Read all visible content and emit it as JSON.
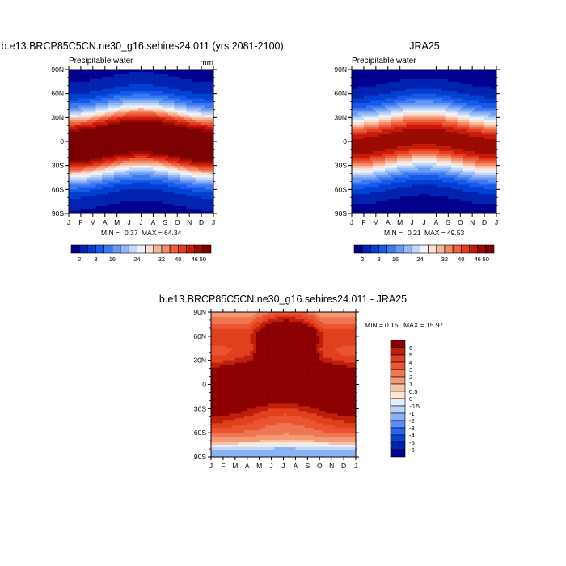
{
  "chart_data": [
    {
      "type": "heatmap",
      "title": "b.e13.BRCP85C5CN.ne30_g16.sehires24.011 (yrs 2081-2100)",
      "left_label": "Precipitable water",
      "right_label": "mm",
      "x_tick_labels": [
        "J",
        "F",
        "M",
        "A",
        "M",
        "J",
        "J",
        "A",
        "S",
        "O",
        "N",
        "D",
        "J"
      ],
      "y_tick_labels": [
        "90S",
        "60S",
        "30S",
        "0",
        "30N",
        "60N",
        "90N"
      ],
      "ylim": [
        -90,
        90
      ],
      "stats": {
        "min_label": "MIN =",
        "min": "0.37",
        "max_label": "MAX =",
        "max": "64.34"
      },
      "colorbar_ticks": [
        "2",
        "8",
        "16",
        "24",
        "32",
        "40",
        "46",
        "50"
      ]
    },
    {
      "type": "heatmap",
      "title": "JRA25",
      "left_label": "Precipitable water",
      "right_label": "",
      "x_tick_labels": [
        "J",
        "F",
        "M",
        "A",
        "M",
        "J",
        "J",
        "A",
        "S",
        "O",
        "N",
        "D",
        "J"
      ],
      "y_tick_labels": [
        "90S",
        "60S",
        "30S",
        "0",
        "30N",
        "60N",
        "90N"
      ],
      "ylim": [
        -90,
        90
      ],
      "stats": {
        "min_label": "MIN =",
        "min": "0.21",
        "max_label": "MAX =",
        "max": "49.53"
      },
      "colorbar_ticks": [
        "2",
        "8",
        "16",
        "24",
        "32",
        "40",
        "46",
        "50"
      ]
    },
    {
      "type": "heatmap",
      "title": "b.e13.BRCP85C5CN.ne30_g16.sehires24.011 - JRA25",
      "x_tick_labels": [
        "J",
        "F",
        "M",
        "A",
        "M",
        "J",
        "J",
        "A",
        "S",
        "O",
        "N",
        "D",
        "J"
      ],
      "y_tick_labels": [
        "90S",
        "60S",
        "30S",
        "0",
        "30N",
        "60N",
        "90N"
      ],
      "ylim": [
        -90,
        90
      ],
      "stats": {
        "min_label": "MIN =",
        "min": "0.15",
        "max_label": "MAX =",
        "max": "15.97"
      },
      "colorbar_ticks": [
        "6",
        "5",
        "4",
        "3",
        "2",
        "1",
        "0.5",
        "0",
        "-0.5",
        "-1",
        "-2",
        "-3",
        "-4",
        "-5",
        "-6"
      ]
    }
  ],
  "colors": {
    "abs_scale": [
      "#00008c",
      "#0022b0",
      "#0040d0",
      "#1658ea",
      "#3a78f0",
      "#6898f4",
      "#95b8f6",
      "#c3d8f8",
      "#eef3fb",
      "#fbe0cf",
      "#f6b69a",
      "#f18866",
      "#ee5e3c",
      "#e63a1e",
      "#c81a0a",
      "#9a0a00",
      "#7c0000"
    ],
    "diff_scale": [
      "#00008c",
      "#0022b0",
      "#0046d6",
      "#2466ec",
      "#5a8ef2",
      "#8cb2f6",
      "#bed4f8",
      "#e4eefa",
      "#fde6d6",
      "#f8c2a8",
      "#f29a78",
      "#ee7650",
      "#ea5432",
      "#e0401e",
      "#bf1e0c",
      "#8c0000"
    ]
  }
}
